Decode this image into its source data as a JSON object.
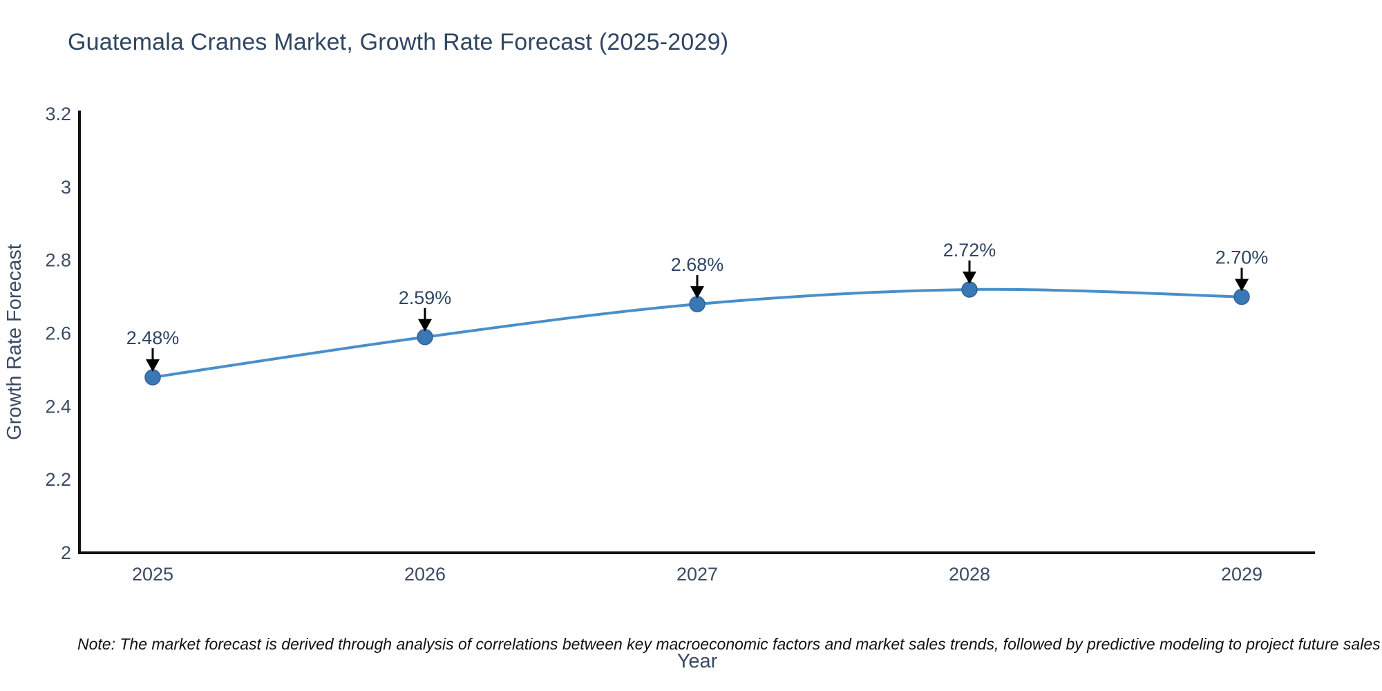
{
  "page": {
    "background": "#ffffff"
  },
  "header": {
    "title": "Guatemala Cranes Market, Growth Rate Forecast (2025-2029)"
  },
  "footer": {
    "note": "Note: The market forecast is derived through analysis of correlations between key macroeconomic factors and market sales trends, followed by predictive modeling to project future sales"
  },
  "chart_data": {
    "type": "line",
    "title": "Guatemala Cranes Market, Growth Rate Forecast (2025-2029)",
    "x": [
      2025,
      2026,
      2027,
      2028,
      2029
    ],
    "y": [
      2.48,
      2.59,
      2.68,
      2.72,
      2.7
    ],
    "series_name": "Growth Rate Forecast",
    "point_labels": [
      "2.48%",
      "2.59%",
      "2.68%",
      "2.72%",
      "2.70%"
    ],
    "xtick_labels": [
      "2025",
      "2026",
      "2027",
      "2028",
      "2029"
    ],
    "ytick_values": [
      2,
      2.2,
      2.4,
      2.6,
      2.8,
      3,
      3.2
    ],
    "ytick_labels": [
      "2",
      "2.2",
      "2.4",
      "2.6",
      "2.8",
      "3",
      "3.2"
    ],
    "xlabel": "Year",
    "ylabel": "Growth Rate Forecast",
    "ylim": [
      2,
      3.2
    ],
    "grid": false,
    "legend": "none",
    "line_shape": "spline",
    "annotations": "each point labeled with percent value and a black arrow pointing down at the marker",
    "colors": {
      "line": "#4a8fc9",
      "marker_fill": "#3a78b5",
      "marker_edge": "#2e6298",
      "axis_line": "#111111",
      "title_text": "#2f4562",
      "tick_text": "#3b4a63",
      "annotation_text": "#2f4562",
      "arrow": "#000000",
      "note_text": "#111111"
    }
  }
}
